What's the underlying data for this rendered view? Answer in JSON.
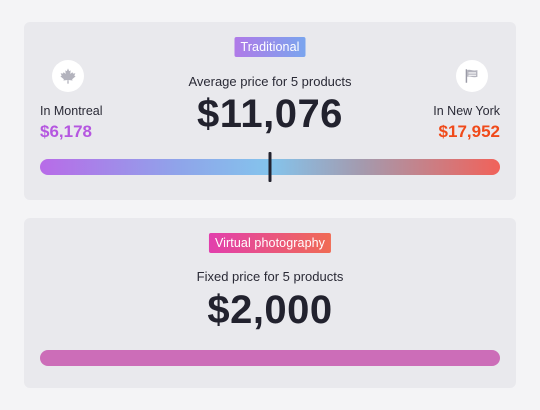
{
  "traditional": {
    "badge": "Traditional",
    "caption": "Average price for 5 products",
    "price": "$11,076",
    "montreal": {
      "label": "In Montreal",
      "price": "$6,178",
      "icon": "maple-leaf-icon"
    },
    "new_york": {
      "label": "In New York",
      "price": "$17,952",
      "icon": "flag-icon"
    },
    "bar": {
      "marker_position": 0.5
    },
    "colors": {
      "montreal": "#b557e0",
      "new_york": "#f04a1a"
    }
  },
  "virtual": {
    "badge": "Virtual photography",
    "caption": "Fixed price for 5 products",
    "price": "$2,000"
  }
}
